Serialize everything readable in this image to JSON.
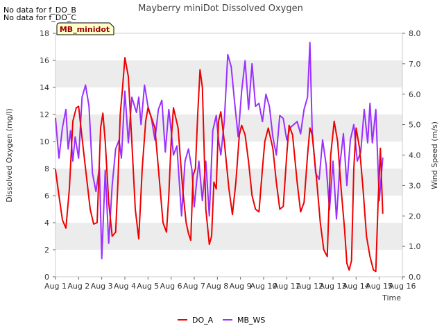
{
  "notes": [
    "No data for f_DO_B",
    "No data for f_DO_C"
  ],
  "chart_data": {
    "type": "line",
    "title": "Mayberry miniDot Dissolved Oxygen",
    "badge": "MB_minidot",
    "xlabel": "Time",
    "ylabel": "Dissolved Oxygen (mg/l)",
    "y2label": "Wind Speed (m/s)",
    "xlim": [
      1,
      16
    ],
    "ylim": [
      0,
      18
    ],
    "y2lim": [
      0,
      8
    ],
    "xticks": [
      1,
      2,
      3,
      4,
      5,
      6,
      7,
      8,
      9,
      10,
      11,
      12,
      13,
      14,
      15,
      16
    ],
    "xtick_labels": [
      "Aug 1",
      "Aug 2",
      "Aug 3",
      "Aug 4",
      "Aug 5",
      "Aug 6",
      "Aug 7",
      "Aug 8",
      "Aug 9",
      "Aug 10",
      "Aug 11",
      "Aug 12",
      "Aug 13",
      "Aug 14",
      "Aug 15",
      "Aug 16"
    ],
    "yticks": [
      0,
      2,
      4,
      6,
      8,
      10,
      12,
      14,
      16,
      18
    ],
    "y2ticks": [
      "0.0",
      "1.0",
      "2.0",
      "3.0",
      "4.0",
      "5.0",
      "6.0",
      "7.0",
      "8.0"
    ],
    "grid": "horizontal bands",
    "legend_position": "bottom",
    "series": [
      {
        "name": "DO_A",
        "axis": "left",
        "color": "#ee0000",
        "x": [
          1.0,
          1.15,
          1.3,
          1.45,
          1.6,
          1.75,
          1.9,
          2.0,
          2.1,
          2.3,
          2.5,
          2.65,
          2.8,
          2.95,
          3.05,
          3.15,
          3.3,
          3.45,
          3.6,
          3.7,
          3.8,
          3.9,
          4.0,
          4.15,
          4.3,
          4.45,
          4.6,
          4.75,
          4.9,
          5.0,
          5.1,
          5.3,
          5.5,
          5.65,
          5.8,
          5.9,
          6.0,
          6.1,
          6.3,
          6.5,
          6.65,
          6.75,
          6.85,
          6.95,
          7.05,
          7.15,
          7.25,
          7.35,
          7.5,
          7.65,
          7.75,
          7.85,
          7.95,
          8.05,
          8.15,
          8.3,
          8.5,
          8.65,
          8.8,
          8.95,
          9.05,
          9.2,
          9.35,
          9.5,
          9.65,
          9.8,
          9.95,
          10.05,
          10.2,
          10.4,
          10.55,
          10.7,
          10.85,
          11.0,
          11.1,
          11.25,
          11.45,
          11.6,
          11.75,
          11.9,
          12.0,
          12.1,
          12.3,
          12.45,
          12.6,
          12.75,
          12.9,
          13.05,
          13.2,
          13.35,
          13.5,
          13.6,
          13.7,
          13.8,
          13.9,
          14.0,
          14.15,
          14.3,
          14.45,
          14.6,
          14.75,
          14.85,
          14.95,
          15.05,
          15.15
        ],
        "y": [
          7.9,
          6.0,
          4.2,
          3.6,
          6.5,
          11.5,
          12.5,
          12.6,
          11.0,
          8.0,
          5.0,
          3.9,
          4.0,
          11.0,
          12.1,
          10.0,
          5.5,
          3.0,
          3.3,
          7.0,
          12.0,
          14.0,
          16.2,
          14.8,
          10.0,
          5.0,
          2.8,
          8.0,
          11.5,
          12.5,
          12.0,
          11.0,
          7.0,
          4.0,
          3.3,
          6.0,
          10.0,
          12.5,
          11.0,
          6.5,
          4.0,
          3.2,
          2.7,
          7.5,
          8.0,
          12.0,
          15.3,
          14.0,
          5.0,
          2.4,
          3.0,
          7.0,
          6.5,
          11.5,
          12.2,
          10.0,
          6.5,
          4.6,
          7.0,
          10.5,
          11.2,
          10.5,
          8.5,
          6.0,
          5.0,
          4.8,
          8.0,
          10.0,
          11.0,
          9.5,
          7.0,
          5.0,
          5.2,
          9.0,
          11.2,
          10.5,
          7.0,
          4.8,
          5.5,
          9.0,
          11.0,
          10.5,
          7.0,
          4.0,
          2.0,
          1.5,
          9.0,
          11.5,
          10.0,
          6.5,
          3.5,
          1.0,
          0.5,
          1.2,
          8.0,
          11.0,
          9.5,
          6.5,
          3.0,
          1.5,
          0.5,
          0.4,
          5.5,
          9.5,
          4.7
        ]
      },
      {
        "name": "MB_WS",
        "axis": "right",
        "color": "#9b30ff",
        "x": [
          1.0,
          1.15,
          1.3,
          1.45,
          1.55,
          1.65,
          1.75,
          1.85,
          2.0,
          2.15,
          2.3,
          2.45,
          2.6,
          2.75,
          2.9,
          3.0,
          3.15,
          3.3,
          3.45,
          3.6,
          3.75,
          3.85,
          4.0,
          4.15,
          4.3,
          4.5,
          4.6,
          4.7,
          4.85,
          5.0,
          5.15,
          5.3,
          5.45,
          5.6,
          5.75,
          5.9,
          6.0,
          6.1,
          6.25,
          6.45,
          6.6,
          6.75,
          6.9,
          7.0,
          7.1,
          7.2,
          7.35,
          7.5,
          7.65,
          7.8,
          7.95,
          8.05,
          8.15,
          8.3,
          8.45,
          8.6,
          8.75,
          8.9,
          9.05,
          9.2,
          9.35,
          9.5,
          9.65,
          9.8,
          9.95,
          10.1,
          10.25,
          10.4,
          10.55,
          10.7,
          10.85,
          11.0,
          11.15,
          11.3,
          11.45,
          11.6,
          11.75,
          11.9,
          12.0,
          12.1,
          12.25,
          12.4,
          12.55,
          12.7,
          12.85,
          13.0,
          13.15,
          13.3,
          13.45,
          13.6,
          13.75,
          13.9,
          14.05,
          14.2,
          14.35,
          14.5,
          14.6,
          14.7,
          14.85,
          15.0,
          15.15
        ],
        "y": [
          5.2,
          3.9,
          4.9,
          5.5,
          4.2,
          4.8,
          3.8,
          4.6,
          3.9,
          5.9,
          6.3,
          5.6,
          3.4,
          2.8,
          3.6,
          0.6,
          3.5,
          1.1,
          3.0,
          4.2,
          4.5,
          3.9,
          6.1,
          4.4,
          5.9,
          5.4,
          5.9,
          5.0,
          6.3,
          5.6,
          5.2,
          4.5,
          5.5,
          5.8,
          4.1,
          5.5,
          4.8,
          4.0,
          4.3,
          2.0,
          3.8,
          4.2,
          3.5,
          2.3,
          3.1,
          3.8,
          2.5,
          3.8,
          2.0,
          4.8,
          5.3,
          4.5,
          4.0,
          5.1,
          7.3,
          6.9,
          5.7,
          4.6,
          6.1,
          7.1,
          5.5,
          7.0,
          5.6,
          5.7,
          5.1,
          6.0,
          5.6,
          4.6,
          4.0,
          5.3,
          5.2,
          4.5,
          4.9,
          5.0,
          5.1,
          4.7,
          5.5,
          5.9,
          7.7,
          4.8,
          3.4,
          3.2,
          4.5,
          3.7,
          2.2,
          3.8,
          1.9,
          3.7,
          4.7,
          3.0,
          4.5,
          5.0,
          3.8,
          4.1,
          5.5,
          4.4,
          5.7,
          4.4,
          5.5,
          2.5,
          3.9
        ]
      }
    ]
  }
}
